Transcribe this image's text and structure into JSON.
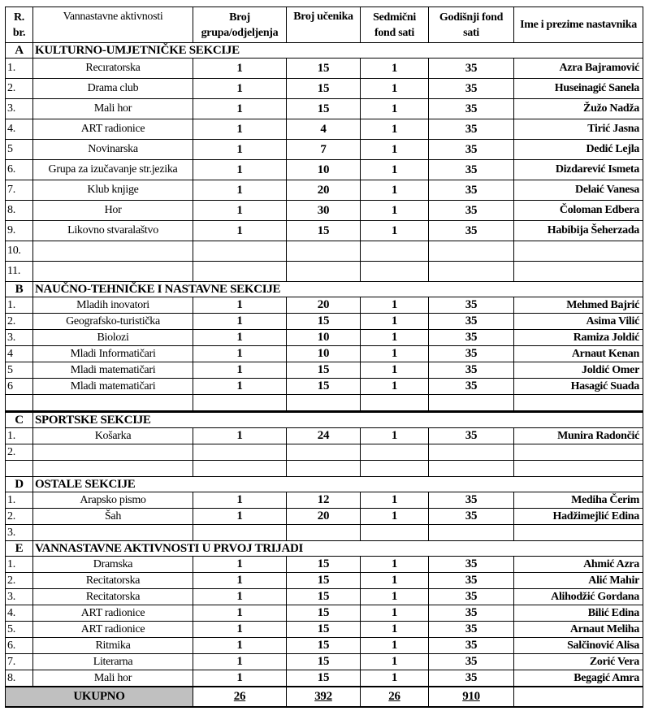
{
  "header": {
    "rbr": "R. br.",
    "activity": "Vannastavne aktivnosti",
    "groups": "Broj grupa/odjeljenja",
    "students": "Broj učenika",
    "weekly": "Sedmični fond sati",
    "yearly": "Godišnji fond sati",
    "teacher": "Ime i prezime nastavnika"
  },
  "sections": [
    {
      "letter": "A",
      "title": "KULTURNO-UMJETNIČKE SEKCIJE",
      "size": "A",
      "rows": [
        [
          "1.",
          "Recıratorska",
          "1",
          "15",
          "1",
          "35",
          "Azra Bajramović"
        ],
        [
          "2.",
          "Drama club",
          "1",
          "15",
          "1",
          "35",
          "Huseinagić Sanela"
        ],
        [
          "3.",
          "Mali hor",
          "1",
          "15",
          "1",
          "35",
          "Žužo Nadža"
        ],
        [
          "4.",
          "ART radionice",
          "1",
          "4",
          "1",
          "35",
          "Tirić Jasna"
        ],
        [
          "5",
          "Novinarska",
          "1",
          "7",
          "1",
          "35",
          "Dedić Lejla"
        ],
        [
          "6.",
          "Grupa za izučavanje str.jezika",
          "1",
          "10",
          "1",
          "35",
          "Dizdarević Ismeta"
        ],
        [
          "7.",
          "Klub knjige",
          "1",
          "20",
          "1",
          "35",
          "Delaić Vanesa"
        ],
        [
          "8.",
          "Hor",
          "1",
          "30",
          "1",
          "35",
          "Čoloman Edbera"
        ],
        [
          "9.",
          "Likovno stvaralaštvo",
          "1",
          "15",
          "1",
          "35",
          "Habibija Šeherzada"
        ],
        [
          "10.",
          "",
          "",
          "",
          "",
          "",
          ""
        ],
        [
          "11.",
          "",
          "",
          "",
          "",
          "",
          ""
        ]
      ]
    },
    {
      "letter": "B",
      "title": "NAUČNO-TEHNIČKE I NASTAVNE SEKCIJE",
      "size": "B",
      "rows": [
        [
          "1.",
          "Mladih inovatori",
          "1",
          "20",
          "1",
          "35",
          "Mehmed Bajrić"
        ],
        [
          "2.",
          "Geografsko-turistička",
          "1",
          "15",
          "1",
          "35",
          "Asima Vilić"
        ],
        [
          "3.",
          "Biolozi",
          "1",
          "10",
          "1",
          "35",
          "Ramiza Joldić"
        ],
        [
          "4",
          "Mladi Informatičari",
          "1",
          "10",
          "1",
          "35",
          "Arnaut Kenan"
        ],
        [
          "5",
          "Mladi matematičari",
          "1",
          "15",
          "1",
          "35",
          "Joldić Omer"
        ],
        [
          "6",
          "Mladi matematičari",
          "1",
          "15",
          "1",
          "35",
          "Hasagić Suada"
        ],
        [
          "",
          "",
          "",
          "",
          "",
          "",
          ""
        ]
      ]
    },
    {
      "letter": "C",
      "title": "SPORTSKE SEKCIJE",
      "size": "B",
      "rows": [
        [
          "1.",
          "Košarka",
          "1",
          "24",
          "1",
          "35",
          "Munira Radončić"
        ],
        [
          "2.",
          "",
          "",
          "",
          "",
          "",
          ""
        ],
        [
          "",
          "",
          "",
          "",
          "",
          "",
          ""
        ]
      ]
    },
    {
      "letter": "D",
      "title": "OSTALE SEKCIJE",
      "size": "B",
      "rows": [
        [
          "1.",
          "Arapsko pismo",
          "1",
          "12",
          "1",
          "35",
          "Mediha Čerim"
        ],
        [
          "2.",
          "Šah",
          "1",
          "20",
          "1",
          "35",
          "Hadžimejlić Edina"
        ],
        [
          "3.",
          "",
          "",
          "",
          "",
          "",
          ""
        ]
      ]
    },
    {
      "letter": "E",
      "title": "VANNASTAVNE AKTIVNOSTI U PRVOJ TRIJADI",
      "size": "B",
      "rows": [
        [
          "1.",
          "Dramska",
          "1",
          "15",
          "1",
          "35",
          "Ahmić Azra"
        ],
        [
          "2.",
          "Recitatorska",
          "1",
          "15",
          "1",
          "35",
          "Alić Mahir"
        ],
        [
          "3.",
          "Recitatorska",
          "1",
          "15",
          "1",
          "35",
          "Alihodžić Gordana"
        ],
        [
          "4.",
          "ART radionice",
          "1",
          "15",
          "1",
          "35",
          "Bilić Edina"
        ],
        [
          "5.",
          "ART radionice",
          "1",
          "15",
          "1",
          "35",
          "Arnaut Meliha"
        ],
        [
          "6.",
          "Ritmika",
          "1",
          "15",
          "1",
          "35",
          "Salčinović Alisa"
        ],
        [
          "7.",
          "Literarna",
          "1",
          "15",
          "1",
          "35",
          "Zorić Vera"
        ],
        [
          "8.",
          "Mali hor",
          "1",
          "15",
          "1",
          "35",
          "Begagić Amra"
        ]
      ]
    }
  ],
  "total": {
    "label": "UKUPNO",
    "groups": "26",
    "students": "392",
    "weekly": "26",
    "yearly": "910"
  },
  "colors": {
    "total_bg": "#c0c0c0"
  }
}
